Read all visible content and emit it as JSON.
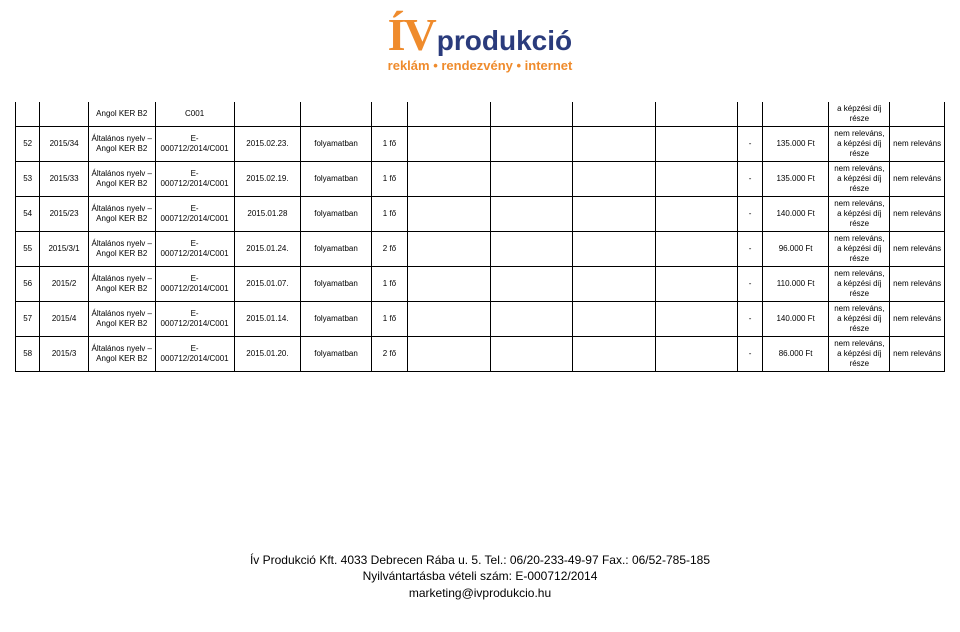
{
  "logo": {
    "iv": "ÍV",
    "produkcio": "produkció",
    "sub": "reklám • rendezvény • internet"
  },
  "table": {
    "rows": [
      {
        "n": "",
        "id": "",
        "desc": "Angol KER B2",
        "code": "C001",
        "date": "",
        "status": "",
        "fo": "",
        "dash": "",
        "amount": "",
        "note": "a képzési díj része",
        "rel": ""
      },
      {
        "n": "52",
        "id": "2015/34",
        "desc": "Általános nyelv – Angol KER B2",
        "code": "E-000712/2014/C001",
        "date": "2015.02.23.",
        "status": "folyamatban",
        "fo": "1 fő",
        "dash": "-",
        "amount": "135.000 Ft",
        "note": "nem releváns, a képzési díj része",
        "rel": "nem releváns"
      },
      {
        "n": "53",
        "id": "2015/33",
        "desc": "Általános nyelv – Angol KER B2",
        "code": "E-000712/2014/C001",
        "date": "2015.02.19.",
        "status": "folyamatban",
        "fo": "1 fő",
        "dash": "-",
        "amount": "135.000 Ft",
        "note": "nem releváns, a képzési díj része",
        "rel": "nem releváns"
      },
      {
        "n": "54",
        "id": "2015/23",
        "desc": "Általános nyelv – Angol KER B2",
        "code": "E-000712/2014/C001",
        "date": "2015.01.28",
        "status": "folyamatban",
        "fo": "1 fő",
        "dash": "-",
        "amount": "140.000 Ft",
        "note": "nem releváns, a képzési díj része",
        "rel": "nem releváns"
      },
      {
        "n": "55",
        "id": "2015/3/1",
        "desc": "Általános nyelv – Angol KER B2",
        "code": "E-000712/2014/C001",
        "date": "2015.01.24.",
        "status": "folyamatban",
        "fo": "2 fő",
        "dash": "-",
        "amount": "96.000 Ft",
        "note": "nem releváns, a képzési díj része",
        "rel": "nem releváns"
      },
      {
        "n": "56",
        "id": "2015/2",
        "desc": "Általános nyelv – Angol KER B2",
        "code": "E-000712/2014/C001",
        "date": "2015.01.07.",
        "status": "folyamatban",
        "fo": "1 fő",
        "dash": "-",
        "amount": "110.000 Ft",
        "note": "nem releváns, a képzési díj része",
        "rel": "nem releváns"
      },
      {
        "n": "57",
        "id": "2015/4",
        "desc": "Általános nyelv – Angol KER B2",
        "code": "E-000712/2014/C001",
        "date": "2015.01.14.",
        "status": "folyamatban",
        "fo": "1 fő",
        "dash": "-",
        "amount": "140.000 Ft",
        "note": "nem releváns, a képzési díj része",
        "rel": "nem releváns"
      },
      {
        "n": "58",
        "id": "2015/3",
        "desc": "Általános nyelv – Angol KER B2",
        "code": "E-000712/2014/C001",
        "date": "2015.01.20.",
        "status": "folyamatban",
        "fo": "2 fő",
        "dash": "-",
        "amount": "86.000 Ft",
        "note": "nem releváns, a képzési díj része",
        "rel": "nem releváns"
      }
    ]
  },
  "footer": {
    "line1": "Ív Produkció Kft. 4033 Debrecen Rába u. 5. Tel.: 06/20-233-49-97 Fax.: 06/52-785-185",
    "line2": "Nyilvántartásba vételi szám: E-000712/2014",
    "line3": "marketing@ivprodukcio.hu"
  },
  "colors": {
    "orange": "#ef8b2c",
    "navy": "#2a3b7c",
    "border": "#000000",
    "bg": "#ffffff"
  }
}
